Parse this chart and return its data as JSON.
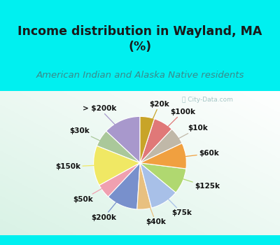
{
  "title": "Income distribution in Wayland, MA\n(%)",
  "subtitle": "American Indian and Alaska Native residents",
  "watermark": "City-Data.com",
  "labels": [
    "> $200k",
    "$30k",
    "$150k",
    "$50k",
    "$200k",
    "$40k",
    "$75k",
    "$125k",
    "$60k",
    "$10k",
    "$100k",
    "$20k"
  ],
  "values": [
    13,
    6,
    14,
    5,
    11,
    5,
    10,
    9,
    9,
    6,
    7,
    5
  ],
  "colors": [
    "#a898cc",
    "#aac89a",
    "#f0e864",
    "#f0a0b0",
    "#7890cc",
    "#e8c080",
    "#a8c0e8",
    "#b0d870",
    "#f0a040",
    "#c0b8a8",
    "#e07878",
    "#c8a428"
  ],
  "title_color": "#1a1a1a",
  "subtitle_color": "#3a8a8a",
  "watermark_color": "#90b8b8",
  "startangle": 90,
  "figsize": [
    4.0,
    3.5
  ],
  "dpi": 100,
  "cyan_bg": "#00f0f0",
  "chart_bg_top": "#c8e8d8",
  "chart_bg_bottom": "#e8f8f0",
  "title_fontsize": 12.5,
  "subtitle_fontsize": 9.5,
  "label_fontsize": 7.5
}
